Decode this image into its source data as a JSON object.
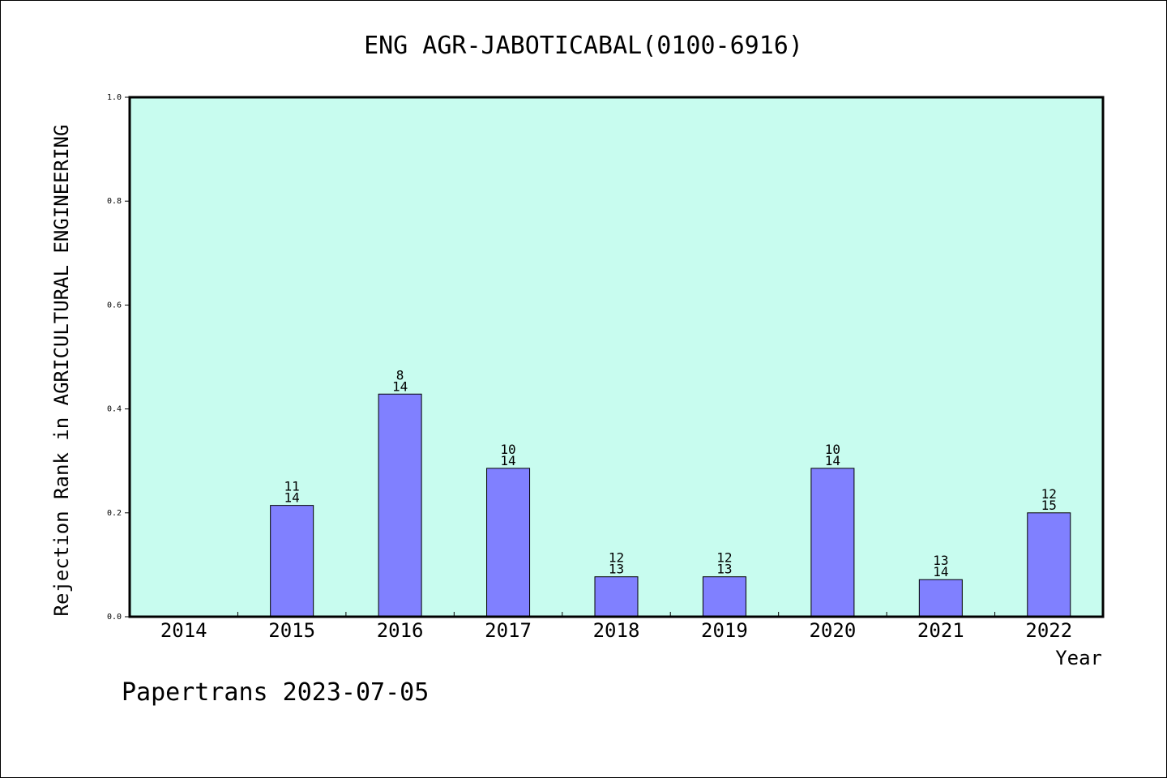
{
  "chart_data": {
    "type": "bar",
    "title": "ENG AGR-JABOTICABAL(0100-6916)",
    "xlabel": "Year",
    "ylabel": "Rejection Rank in AGRICULTURAL ENGINEERING",
    "ylim": [
      0,
      1.0
    ],
    "yticks": [
      "0.0",
      "0.2",
      "0.4",
      "0.6",
      "0.8",
      "1.0"
    ],
    "categories": [
      "2014",
      "2015",
      "2016",
      "2017",
      "2018",
      "2019",
      "2020",
      "2021",
      "2022"
    ],
    "values": [
      null,
      0.2143,
      0.4286,
      0.2857,
      0.0769,
      0.0769,
      0.2857,
      0.0714,
      0.2
    ],
    "label_top": [
      "",
      "11",
      "8",
      "10",
      "12",
      "12",
      "10",
      "13",
      "12"
    ],
    "label_bottom": [
      "",
      "14",
      "14",
      "14",
      "13",
      "13",
      "14",
      "14",
      "15"
    ],
    "grid": false,
    "colors": {
      "plot_background": "#c8fcef",
      "bar_fill": "#8080ff",
      "bar_stroke": "#000000"
    }
  },
  "footer": {
    "credit": "Papertrans 2023-07-05"
  }
}
